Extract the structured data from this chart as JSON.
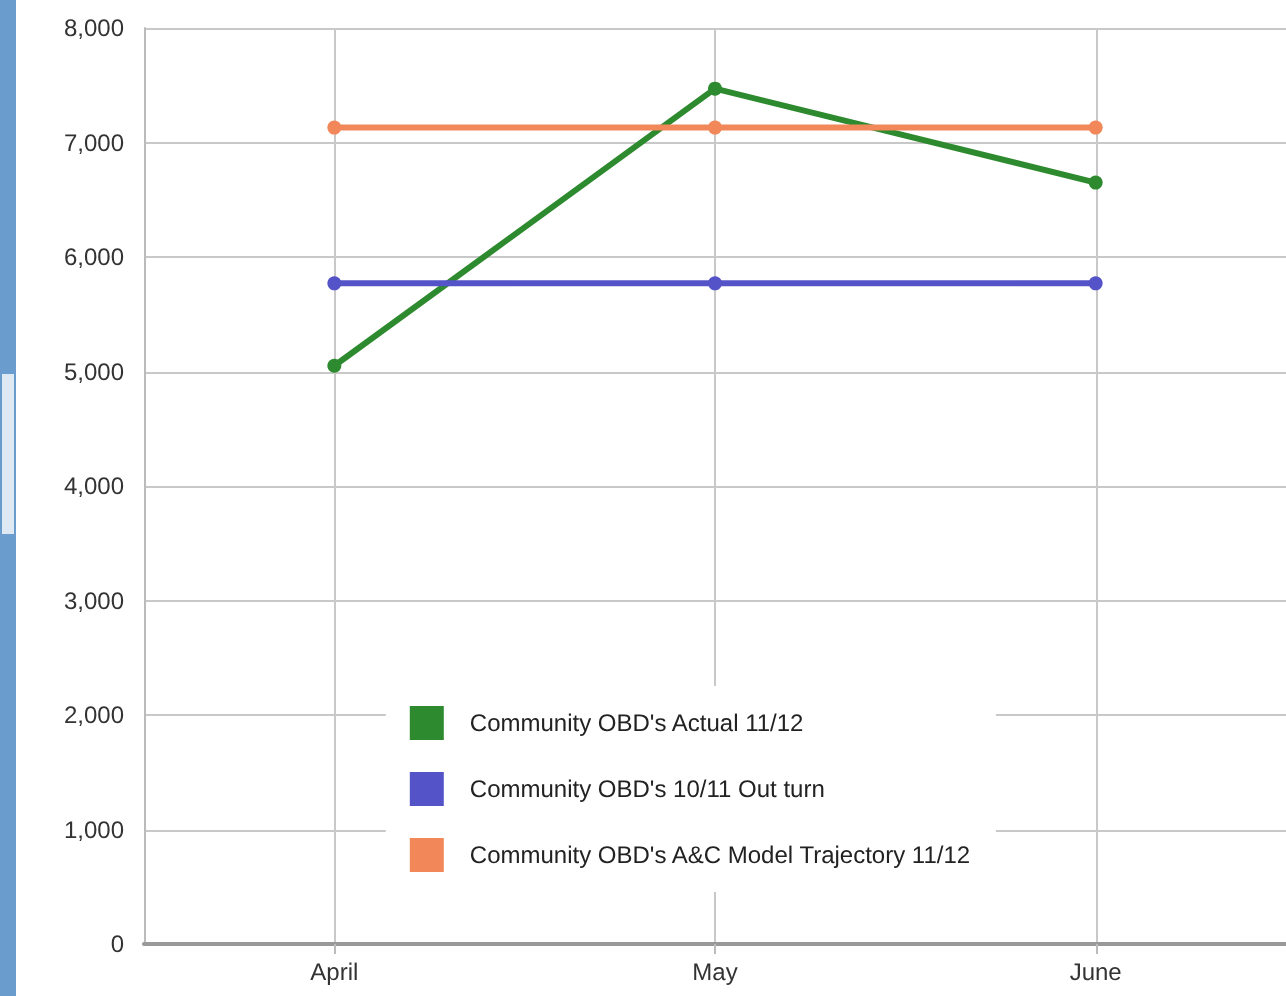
{
  "chart_data": {
    "type": "line",
    "categories": [
      "April",
      "May",
      "June"
    ],
    "series": [
      {
        "name": "Community OBD's Actual 11/12",
        "color": "#2e8a2e",
        "values": [
          5050,
          7470,
          6650
        ]
      },
      {
        "name": "Community OBD's 10/11 Out turn",
        "color": "#5454c8",
        "values": [
          5770,
          5770,
          5770
        ]
      },
      {
        "name": "Community OBD's A&C Model Trajectory 11/12",
        "color": "#f2885a",
        "values": [
          7130,
          7130,
          7130
        ]
      }
    ],
    "ylim": [
      0,
      8000
    ],
    "yticks": [
      0,
      {
        "value": 1000,
        "label": "1,000"
      },
      {
        "value": 2000,
        "label": "2,000"
      },
      {
        "value": 3000,
        "label": "3,000"
      },
      {
        "value": 4000,
        "label": "4,000"
      },
      {
        "value": 5000,
        "label": "5,000"
      },
      {
        "value": 6000,
        "label": "6,000"
      },
      {
        "value": 7000,
        "label": "7,000"
      },
      {
        "value": 8000,
        "label": "8,000"
      }
    ],
    "grid": true,
    "legend": "bottom",
    "marker": "circle",
    "line_style": "solid"
  }
}
